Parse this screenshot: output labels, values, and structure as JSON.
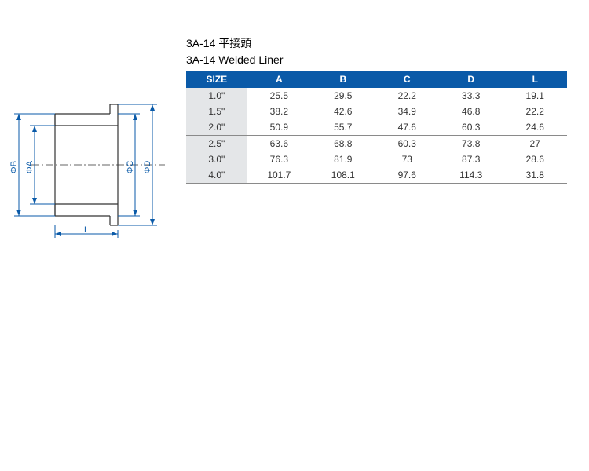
{
  "titles": {
    "line1": "3A-14 平接頭",
    "line2": "3A-14 Welded Liner"
  },
  "diagram": {
    "labels": {
      "B": "ΦB",
      "A": "ΦA",
      "C": "ΦC",
      "D": "ΦD",
      "L": "L"
    }
  },
  "table": {
    "header_bg": "#0a5aa8",
    "header_fg": "#ffffff",
    "size_col_bg": "#e4e6e8",
    "columns": [
      "SIZE",
      "A",
      "B",
      "C",
      "D",
      "L"
    ],
    "groups": [
      {
        "rows": [
          [
            "1.0\"",
            "25.5",
            "29.5",
            "22.2",
            "33.3",
            "19.1"
          ],
          [
            "1.5\"",
            "38.2",
            "42.6",
            "34.9",
            "46.8",
            "22.2"
          ],
          [
            "2.0\"",
            "50.9",
            "55.7",
            "47.6",
            "60.3",
            "24.6"
          ]
        ]
      },
      {
        "rows": [
          [
            "2.5\"",
            "63.6",
            "68.8",
            "60.3",
            "73.8",
            "27"
          ],
          [
            "3.0\"",
            "76.3",
            "81.9",
            "73",
            "87.3",
            "28.6"
          ],
          [
            "4.0\"",
            "101.7",
            "108.1",
            "97.6",
            "114.3",
            "31.8"
          ]
        ]
      }
    ]
  }
}
